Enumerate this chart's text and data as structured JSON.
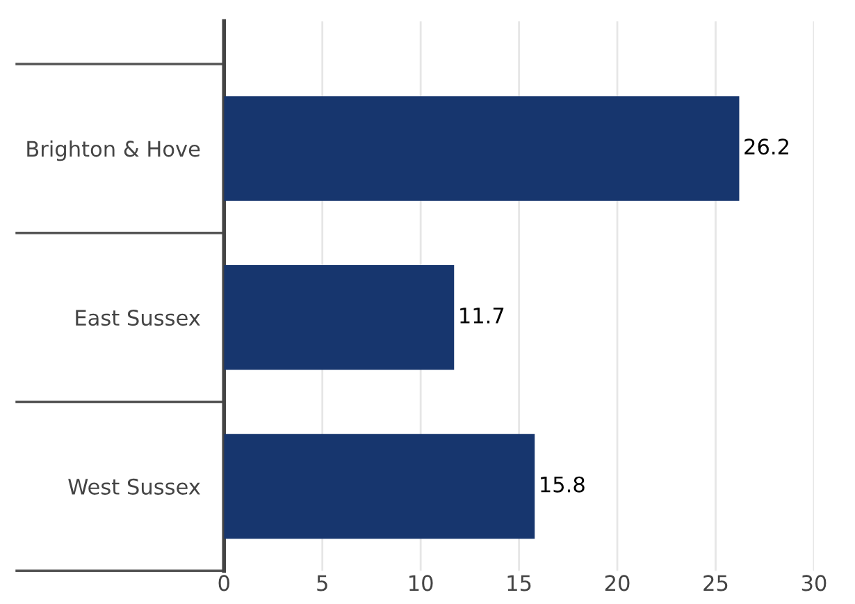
{
  "chart_data": {
    "type": "bar",
    "orientation": "horizontal",
    "categories": [
      "Brighton & Hove",
      "East Sussex",
      "West Sussex"
    ],
    "series": [
      {
        "color": "#17366e",
        "values": [
          26.2,
          11.7,
          15.8
        ]
      }
    ],
    "xlim": [
      0,
      30
    ],
    "xticks": [
      0,
      5,
      10,
      15,
      20,
      25,
      30
    ],
    "grid": "x",
    "data_labels": true
  }
}
